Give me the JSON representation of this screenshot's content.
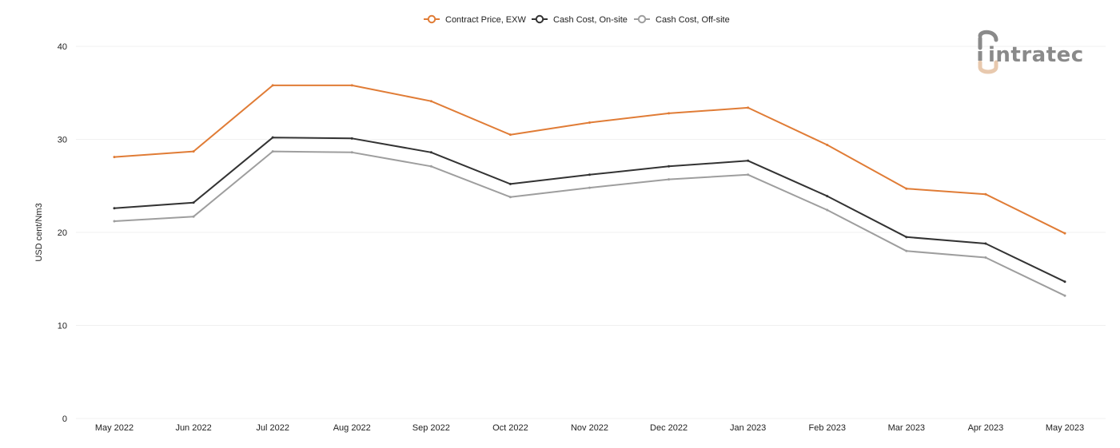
{
  "chart_data": {
    "type": "line",
    "categories": [
      "May 2022",
      "Jun 2022",
      "Jul 2022",
      "Aug 2022",
      "Sep 2022",
      "Oct 2022",
      "Nov 2022",
      "Dec 2022",
      "Jan 2023",
      "Feb 2023",
      "Mar 2023",
      "Apr 2023",
      "May 2023"
    ],
    "series": [
      {
        "name": "Contract Price, EXW",
        "color": "#e07c36",
        "values": [
          28.1,
          28.7,
          35.8,
          35.8,
          34.1,
          30.5,
          31.8,
          32.8,
          33.4,
          29.4,
          24.7,
          24.1,
          19.9
        ]
      },
      {
        "name": "Cash Cost, On-site",
        "color": "#333333",
        "values": [
          22.6,
          23.2,
          30.2,
          30.1,
          28.6,
          25.2,
          26.2,
          27.1,
          27.7,
          23.9,
          19.5,
          18.8,
          14.7
        ]
      },
      {
        "name": "Cash Cost, Off-site",
        "color": "#9e9e9e",
        "values": [
          21.2,
          21.7,
          28.7,
          28.6,
          27.1,
          23.8,
          24.8,
          25.7,
          26.2,
          22.4,
          18.0,
          17.3,
          13.2
        ]
      }
    ],
    "ylabel": "USD cent/Nm3",
    "xlabel": "",
    "ylim": [
      0,
      40
    ],
    "yticks": [
      0,
      10,
      20,
      30,
      40
    ],
    "grid": true,
    "legend_position": "top-center"
  },
  "logo": {
    "text": "intratec",
    "colors": {
      "primary": "#8a8a8a",
      "accent": "#e8c9ae"
    }
  }
}
